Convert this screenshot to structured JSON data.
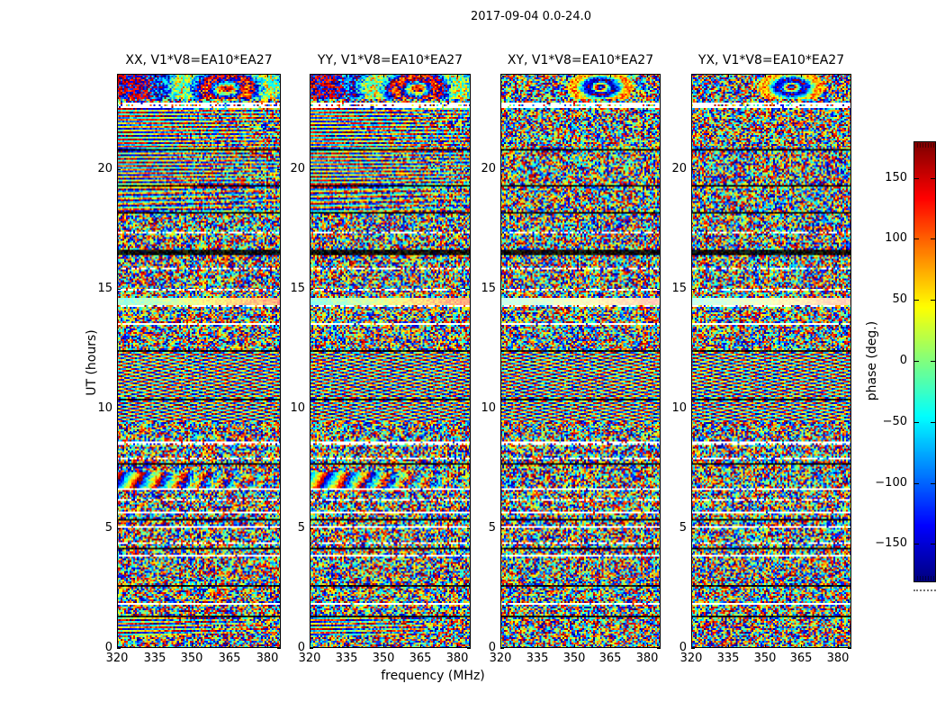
{
  "figure_title": "2017-09-04 0.0-24.0",
  "chart_data": {
    "type": "heatmap",
    "title": "2017-09-04 0.0-24.0",
    "xlabel": "frequency (MHz)",
    "ylabel": "UT (hours)",
    "baseline": "V1*V8=EA10*EA27",
    "panels": [
      {
        "pol": "XX",
        "title": "XX, V1*V8=EA10*EA27"
      },
      {
        "pol": "YY",
        "title": "YY, V1*V8=EA10*EA27"
      },
      {
        "pol": "XY",
        "title": "XY, V1*V8=EA10*EA27"
      },
      {
        "pol": "YX",
        "title": "YX, V1*V8=EA10*EA27"
      }
    ],
    "xlim": [
      320,
      385.5
    ],
    "ylim": [
      0,
      24
    ],
    "xticks": [
      320,
      335,
      350,
      365,
      380
    ],
    "yticks": [
      0,
      5,
      10,
      15,
      20
    ],
    "grid": false,
    "colorbar": {
      "label": "phase (deg.)",
      "cmap": "jet",
      "vmin": -180,
      "vmax": 180,
      "ticks": [
        -150,
        -100,
        -50,
        0,
        50,
        100,
        150
      ]
    },
    "seed": 1337,
    "bands": [
      [
        24.0,
        22.95,
        "top",
        "topx"
      ],
      [
        22.95,
        22.78,
        "noise",
        "noise"
      ],
      [
        22.78,
        22.58,
        "white",
        "white"
      ],
      [
        22.58,
        20.85,
        "hstripes",
        "noise"
      ],
      [
        20.85,
        20.78,
        "black",
        "black"
      ],
      [
        20.78,
        19.35,
        "hstripes",
        "noise"
      ],
      [
        19.35,
        19.28,
        "black",
        "black"
      ],
      [
        19.28,
        18.25,
        "hstripes2",
        "noise"
      ],
      [
        18.25,
        18.18,
        "black",
        "black"
      ],
      [
        18.18,
        17.42,
        "noise",
        "noise"
      ],
      [
        17.42,
        17.34,
        "white",
        "white"
      ],
      [
        17.34,
        16.68,
        "noise",
        "noise"
      ],
      [
        16.68,
        16.42,
        "black",
        "black"
      ],
      [
        16.42,
        15.92,
        "noise",
        "noise"
      ],
      [
        15.92,
        15.84,
        "white",
        "white"
      ],
      [
        15.84,
        15.02,
        "noise",
        "noise"
      ],
      [
        15.02,
        14.94,
        "white",
        "white"
      ],
      [
        14.94,
        14.62,
        "noise",
        "noise"
      ],
      [
        14.62,
        14.36,
        "smooth",
        "smoothx"
      ],
      [
        14.36,
        14.28,
        "white",
        "white"
      ],
      [
        14.28,
        13.56,
        "noise",
        "noise"
      ],
      [
        13.56,
        13.49,
        "white",
        "white"
      ],
      [
        13.49,
        12.43,
        "noise",
        "noise"
      ],
      [
        12.43,
        12.36,
        "black",
        "black"
      ],
      [
        12.36,
        10.43,
        "moire",
        "moire"
      ],
      [
        10.43,
        10.36,
        "black",
        "black"
      ],
      [
        10.36,
        9.45,
        "moire",
        "moire"
      ],
      [
        9.45,
        8.66,
        "noise",
        "noise"
      ],
      [
        8.66,
        8.46,
        "white",
        "white"
      ],
      [
        8.46,
        7.98,
        "noise",
        "noise"
      ],
      [
        7.98,
        7.9,
        "white",
        "white"
      ],
      [
        7.9,
        7.72,
        "noise",
        "noise"
      ],
      [
        7.72,
        7.66,
        "black",
        "black"
      ],
      [
        7.66,
        7.36,
        "noise",
        "noise"
      ],
      [
        7.36,
        6.66,
        "vstripes",
        "noise"
      ],
      [
        6.66,
        6.58,
        "white",
        "white"
      ],
      [
        6.58,
        6.24,
        "noise",
        "noise"
      ],
      [
        6.24,
        6.16,
        "white",
        "white"
      ],
      [
        6.16,
        5.68,
        "noise",
        "noise"
      ],
      [
        5.68,
        5.6,
        "white",
        "white"
      ],
      [
        5.6,
        5.38,
        "noise",
        "noise"
      ],
      [
        5.38,
        5.31,
        "black",
        "black"
      ],
      [
        5.31,
        5.1,
        "noise",
        "noise"
      ],
      [
        5.1,
        5.02,
        "white",
        "white"
      ],
      [
        5.02,
        4.45,
        "noise",
        "noise"
      ],
      [
        4.45,
        4.38,
        "white",
        "white"
      ],
      [
        4.38,
        4.22,
        "noise",
        "noise"
      ],
      [
        4.22,
        4.15,
        "black",
        "black"
      ],
      [
        4.15,
        3.9,
        "noise",
        "noise"
      ],
      [
        3.9,
        3.82,
        "white",
        "white"
      ],
      [
        3.82,
        2.65,
        "noise",
        "noise"
      ],
      [
        2.65,
        2.58,
        "black",
        "black"
      ],
      [
        2.58,
        1.85,
        "noise",
        "noise"
      ],
      [
        1.85,
        1.78,
        "white",
        "white"
      ],
      [
        1.78,
        1.32,
        "noise",
        "noise"
      ],
      [
        1.32,
        1.25,
        "black",
        "black"
      ],
      [
        1.25,
        0.5,
        "bstripes",
        "noise"
      ],
      [
        0.5,
        0.0,
        "noise",
        "noise"
      ]
    ]
  }
}
